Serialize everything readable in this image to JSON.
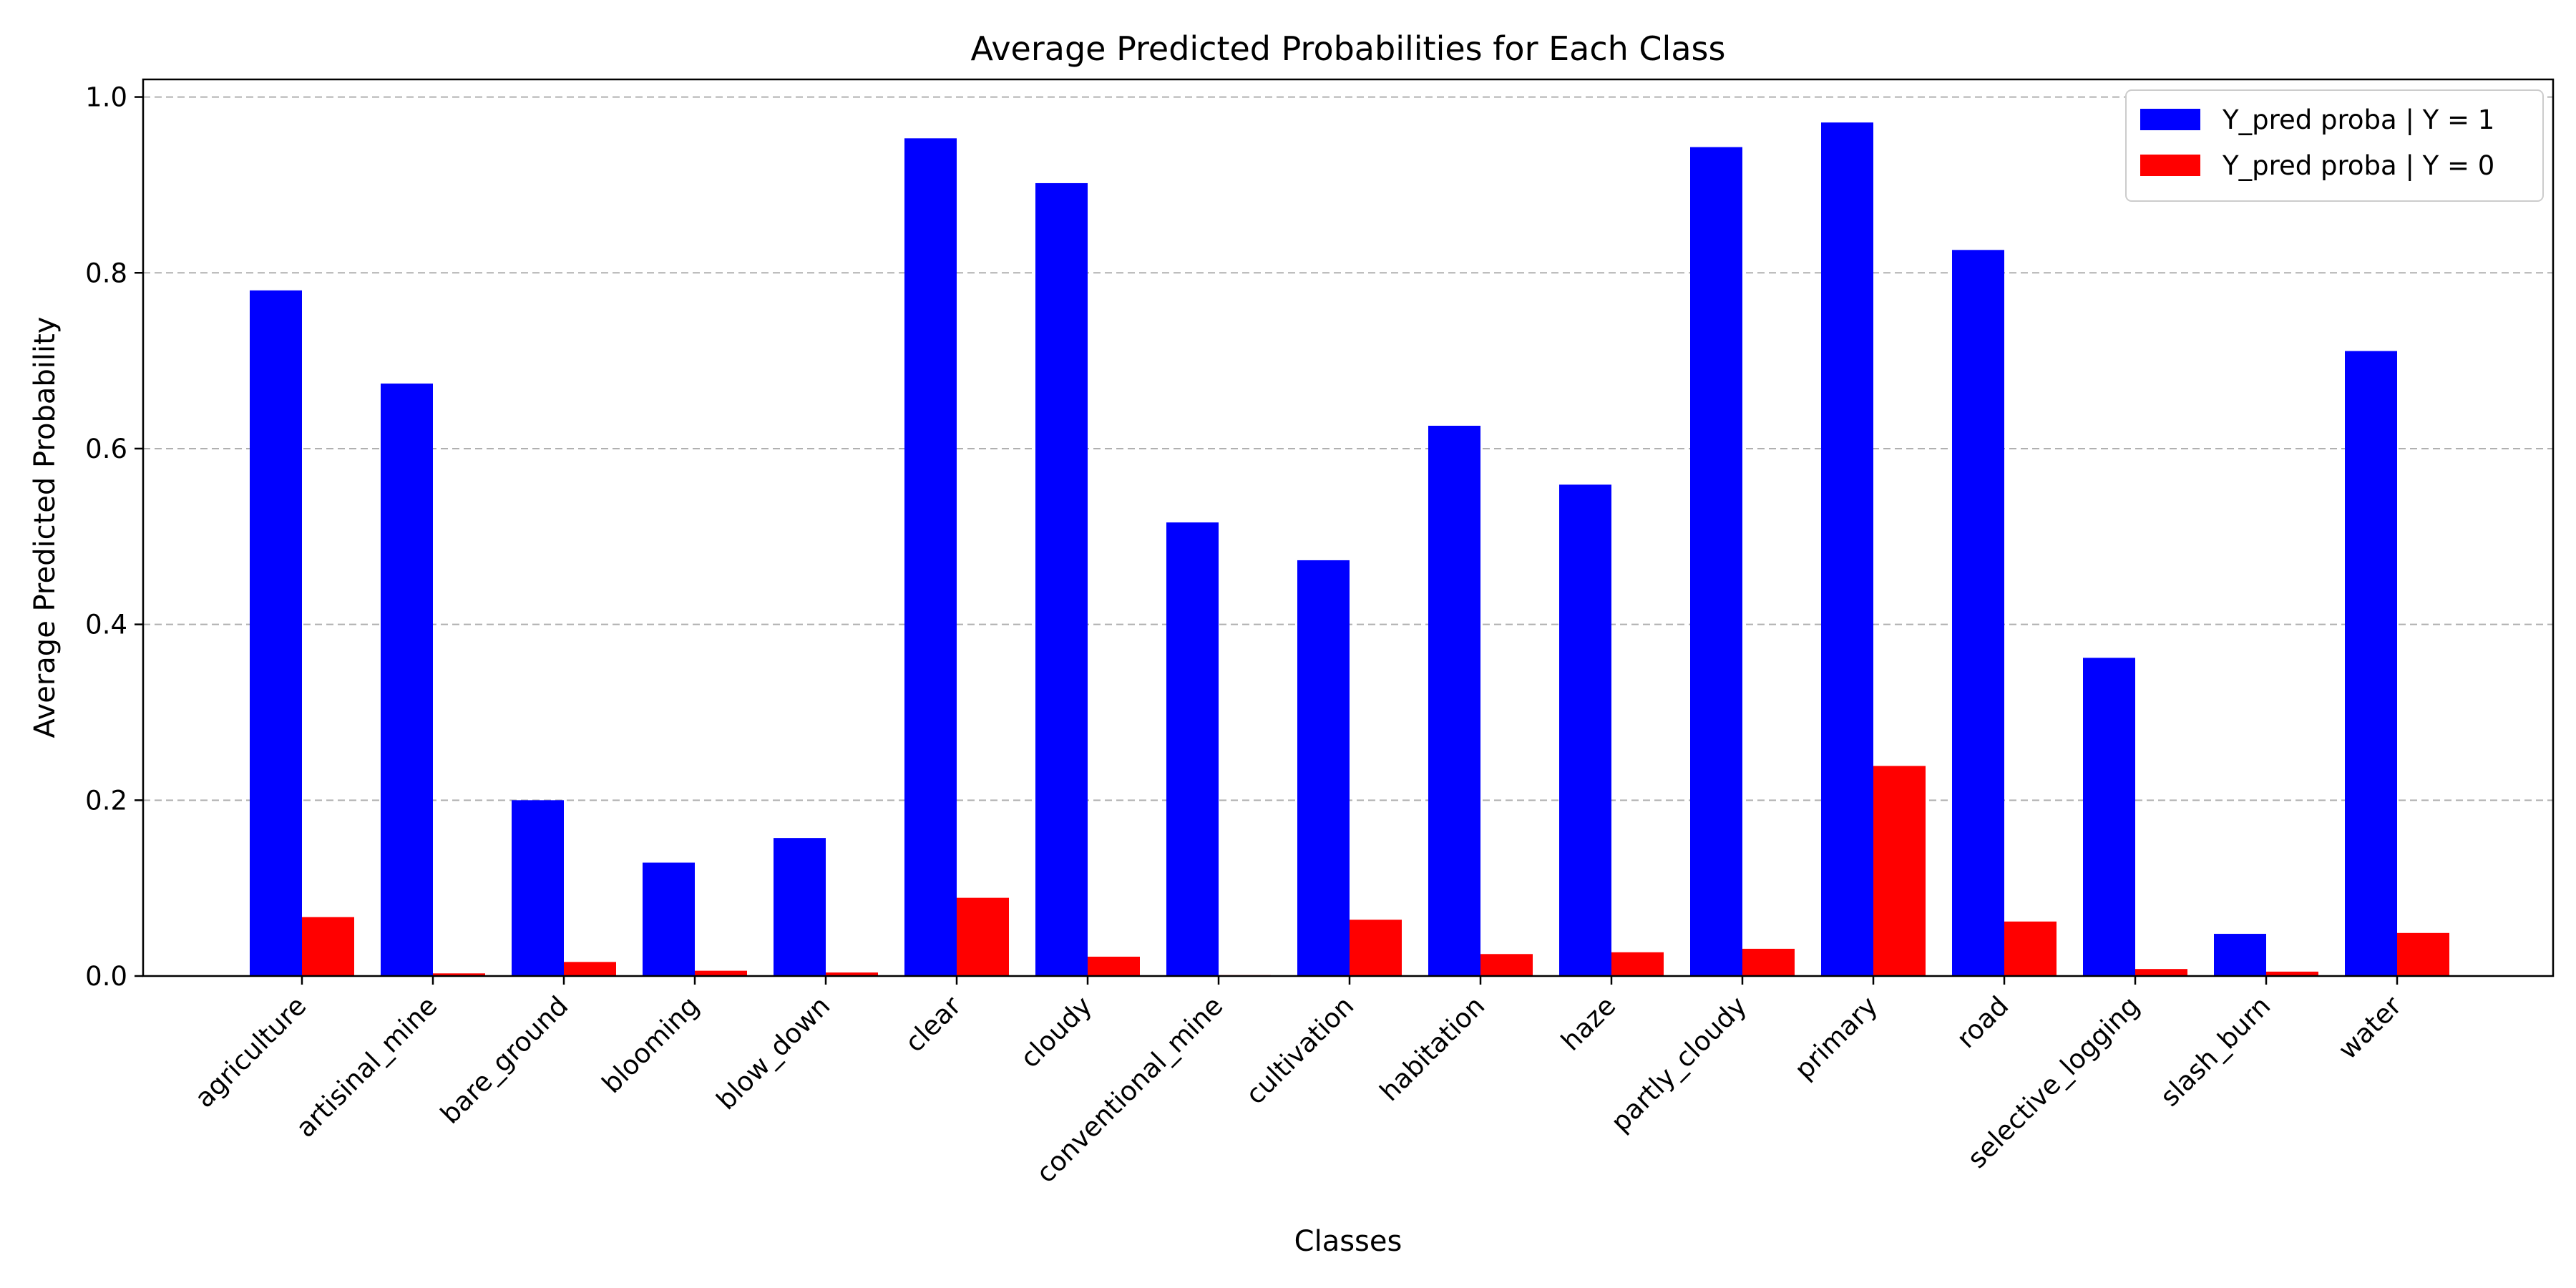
{
  "chart_data": {
    "type": "bar",
    "title": "Average Predicted Probabilities for Each Class",
    "xlabel": "Classes",
    "ylabel": "Average Predicted Probability",
    "ylim": [
      0,
      1.02
    ],
    "yticks": [
      0.0,
      0.2,
      0.4,
      0.6,
      0.8,
      1.0
    ],
    "ytick_labels": [
      "0.0",
      "0.2",
      "0.4",
      "0.6",
      "0.8",
      "1.0"
    ],
    "grid": "y-dashed",
    "legend_position": "top-right",
    "categories": [
      "agriculture",
      "artisinal_mine",
      "bare_ground",
      "blooming",
      "blow_down",
      "clear",
      "cloudy",
      "conventional_mine",
      "cultivation",
      "habitation",
      "haze",
      "partly_cloudy",
      "primary",
      "road",
      "selective_logging",
      "slash_burn",
      "water"
    ],
    "series": [
      {
        "name": "Y_pred proba | Y = 1",
        "color": "#0000ff",
        "values": [
          0.78,
          0.674,
          0.2,
          0.129,
          0.157,
          0.953,
          0.902,
          0.516,
          0.473,
          0.626,
          0.559,
          0.943,
          0.971,
          0.826,
          0.362,
          0.048,
          0.711
        ]
      },
      {
        "name": "Y_pred proba | Y = 0",
        "color": "#ff0000",
        "values": [
          0.067,
          0.003,
          0.016,
          0.006,
          0.004,
          0.089,
          0.022,
          0.001,
          0.064,
          0.025,
          0.027,
          0.031,
          0.239,
          0.062,
          0.008,
          0.005,
          0.049
        ]
      }
    ]
  }
}
